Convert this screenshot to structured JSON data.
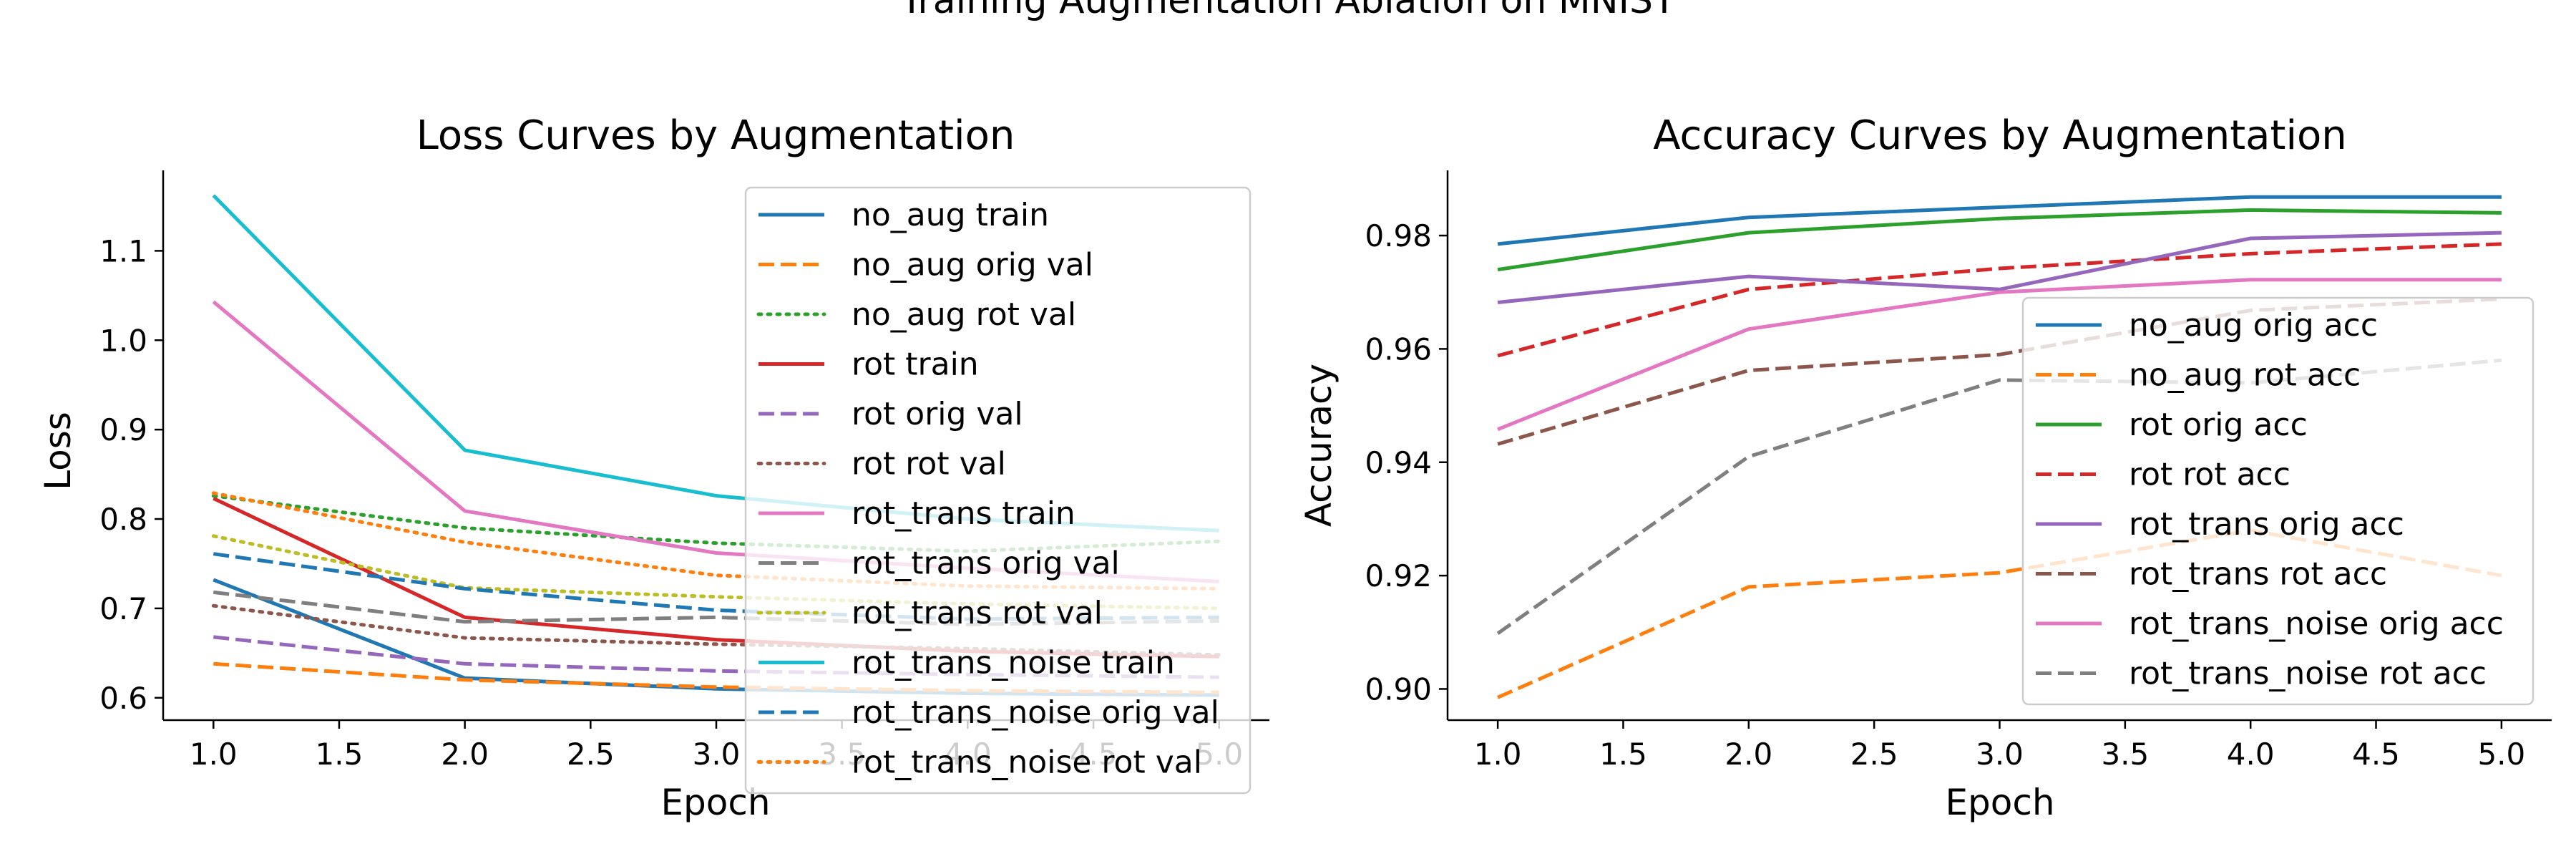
{
  "figure": {
    "suptitle": "Training Augmentation Ablation on MNIST"
  },
  "chart_data": [
    {
      "type": "line",
      "title": "Loss Curves by Augmentation",
      "xlabel": "Epoch",
      "ylabel": "Loss",
      "xlim": [
        0.8,
        5.2
      ],
      "ylim": [
        0.575,
        1.19
      ],
      "xticks": [
        "1.0",
        "1.5",
        "2.0",
        "2.5",
        "3.0",
        "3.5",
        "4.0",
        "4.5",
        "5.0"
      ],
      "yticks": [
        "0.6",
        "0.7",
        "0.8",
        "0.9",
        "1.0",
        "1.1"
      ],
      "x": [
        1,
        2,
        3,
        4,
        5
      ],
      "legend_position": "upper right",
      "series": [
        {
          "name": "no_aug train",
          "color": "#1f77b4",
          "dash": "solid",
          "values": [
            0.732,
            0.622,
            0.61,
            0.605,
            0.603
          ]
        },
        {
          "name": "no_aug orig val",
          "color": "#ff7f0e",
          "dash": "dashed",
          "values": [
            0.638,
            0.62,
            0.612,
            0.608,
            0.606
          ]
        },
        {
          "name": "no_aug rot val",
          "color": "#2ca02c",
          "dash": "dotted",
          "values": [
            0.826,
            0.79,
            0.773,
            0.764,
            0.775
          ]
        },
        {
          "name": "rot train",
          "color": "#d62728",
          "dash": "solid",
          "values": [
            0.823,
            0.69,
            0.665,
            0.652,
            0.646
          ]
        },
        {
          "name": "rot orig val",
          "color": "#9467bd",
          "dash": "dashed",
          "values": [
            0.668,
            0.638,
            0.63,
            0.626,
            0.623
          ]
        },
        {
          "name": "rot rot val",
          "color": "#8c564b",
          "dash": "dotted",
          "values": [
            0.703,
            0.667,
            0.66,
            0.655,
            0.648
          ]
        },
        {
          "name": "rot_trans train",
          "color": "#e377c2",
          "dash": "solid",
          "values": [
            1.043,
            0.809,
            0.762,
            0.745,
            0.73
          ]
        },
        {
          "name": "rot_trans orig val",
          "color": "#7f7f7f",
          "dash": "dashed",
          "values": [
            0.718,
            0.685,
            0.69,
            0.682,
            0.686
          ]
        },
        {
          "name": "rot_trans rot val",
          "color": "#bcbd22",
          "dash": "dotted",
          "values": [
            0.781,
            0.723,
            0.713,
            0.705,
            0.7
          ]
        },
        {
          "name": "rot_trans_noise train",
          "color": "#17becf",
          "dash": "solid",
          "values": [
            1.162,
            0.877,
            0.826,
            0.8,
            0.787
          ]
        },
        {
          "name": "rot_trans_noise orig val",
          "color": "#1f77b4",
          "dash": "dashed",
          "values": [
            0.761,
            0.722,
            0.698,
            0.688,
            0.69
          ]
        },
        {
          "name": "rot_trans_noise rot val",
          "color": "#ff7f0e",
          "dash": "dotted",
          "values": [
            0.829,
            0.774,
            0.737,
            0.725,
            0.722
          ]
        }
      ]
    },
    {
      "type": "line",
      "title": "Accuracy Curves by Augmentation",
      "xlabel": "Epoch",
      "ylabel": "Accuracy",
      "xlim": [
        0.8,
        5.2
      ],
      "ylim": [
        0.8945,
        0.9915
      ],
      "xticks": [
        "1.0",
        "1.5",
        "2.0",
        "2.5",
        "3.0",
        "3.5",
        "4.0",
        "4.5",
        "5.0"
      ],
      "yticks": [
        "0.90",
        "0.92",
        "0.94",
        "0.96",
        "0.98"
      ],
      "x": [
        1,
        2,
        3,
        4,
        5
      ],
      "legend_position": "lower right",
      "series": [
        {
          "name": "no_aug orig acc",
          "color": "#1f77b4",
          "dash": "solid",
          "values": [
            0.9785,
            0.9832,
            0.985,
            0.9868,
            0.9868
          ]
        },
        {
          "name": "no_aug rot acc",
          "color": "#ff7f0e",
          "dash": "dashed",
          "values": [
            0.8985,
            0.918,
            0.9205,
            0.928,
            0.92
          ]
        },
        {
          "name": "rot orig acc",
          "color": "#2ca02c",
          "dash": "solid",
          "values": [
            0.974,
            0.9805,
            0.983,
            0.9845,
            0.984
          ]
        },
        {
          "name": "rot rot acc",
          "color": "#d62728",
          "dash": "dashed",
          "values": [
            0.9588,
            0.9705,
            0.9742,
            0.9768,
            0.9785
          ]
        },
        {
          "name": "rot_trans orig acc",
          "color": "#9467bd",
          "dash": "solid",
          "values": [
            0.9682,
            0.9728,
            0.9705,
            0.9795,
            0.9805
          ]
        },
        {
          "name": "rot_trans rot acc",
          "color": "#8c564b",
          "dash": "dashed",
          "values": [
            0.9432,
            0.9562,
            0.959,
            0.9668,
            0.9688
          ]
        },
        {
          "name": "rot_trans_noise orig acc",
          "color": "#e377c2",
          "dash": "solid",
          "values": [
            0.9458,
            0.9635,
            0.97,
            0.9722,
            0.9722
          ]
        },
        {
          "name": "rot_trans_noise rot acc",
          "color": "#7f7f7f",
          "dash": "dashed",
          "values": [
            0.9098,
            0.941,
            0.9545,
            0.954,
            0.958
          ]
        }
      ]
    }
  ]
}
